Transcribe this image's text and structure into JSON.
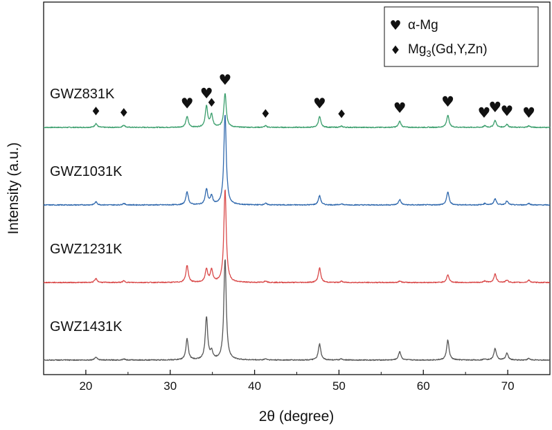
{
  "chart_data": {
    "type": "line",
    "xlabel": "2θ (degree)",
    "ylabel": "Intensity (a.u.)",
    "xlim": [
      15,
      75
    ],
    "x_ticks": [
      20,
      30,
      40,
      50,
      60,
      70
    ],
    "y_ticks_shown": false,
    "grid": false,
    "legend_position": "top-right",
    "legend": [
      {
        "symbol": "♥",
        "symbol_name": "heart",
        "label": "α-Mg",
        "label_base": "α-Mg",
        "label_sub": "",
        "label_tail": ""
      },
      {
        "symbol": "♦",
        "symbol_name": "diamond",
        "label": "Mg3(Gd,Y,Zn)",
        "label_base": "Mg",
        "label_sub": "3",
        "label_tail": "(Gd,Y,Zn)"
      }
    ],
    "series": [
      {
        "name": "GWZ831K",
        "color": "#3a9e6c",
        "baseline": 0,
        "peaks": [
          {
            "x": 21.2,
            "h": 0.05
          },
          {
            "x": 24.5,
            "h": 0.03
          },
          {
            "x": 32.0,
            "h": 0.14
          },
          {
            "x": 34.3,
            "h": 0.27
          },
          {
            "x": 34.9,
            "h": 0.16
          },
          {
            "x": 36.5,
            "h": 0.44
          },
          {
            "x": 41.3,
            "h": 0.02
          },
          {
            "x": 47.7,
            "h": 0.14
          },
          {
            "x": 50.3,
            "h": 0.015
          },
          {
            "x": 57.2,
            "h": 0.08
          },
          {
            "x": 62.9,
            "h": 0.16
          },
          {
            "x": 67.3,
            "h": 0.02
          },
          {
            "x": 68.5,
            "h": 0.09
          },
          {
            "x": 69.9,
            "h": 0.04
          },
          {
            "x": 72.5,
            "h": 0.02
          }
        ]
      },
      {
        "name": "GWZ1031K",
        "color": "#2f68ad",
        "baseline": -1,
        "peaks": [
          {
            "x": 21.2,
            "h": 0.04
          },
          {
            "x": 24.5,
            "h": 0.02
          },
          {
            "x": 32.0,
            "h": 0.17
          },
          {
            "x": 34.3,
            "h": 0.2
          },
          {
            "x": 34.9,
            "h": 0.11
          },
          {
            "x": 36.5,
            "h": 1.17
          },
          {
            "x": 41.3,
            "h": 0.02
          },
          {
            "x": 47.7,
            "h": 0.12
          },
          {
            "x": 50.3,
            "h": 0.015
          },
          {
            "x": 57.2,
            "h": 0.07
          },
          {
            "x": 62.9,
            "h": 0.17
          },
          {
            "x": 67.3,
            "h": 0.02
          },
          {
            "x": 68.5,
            "h": 0.08
          },
          {
            "x": 69.9,
            "h": 0.05
          },
          {
            "x": 72.5,
            "h": 0.02
          }
        ]
      },
      {
        "name": "GWZ1231K",
        "color": "#d94848",
        "baseline": -2,
        "peaks": [
          {
            "x": 21.2,
            "h": 0.05
          },
          {
            "x": 24.5,
            "h": 0.02
          },
          {
            "x": 32.0,
            "h": 0.22
          },
          {
            "x": 34.3,
            "h": 0.17
          },
          {
            "x": 34.9,
            "h": 0.16
          },
          {
            "x": 36.5,
            "h": 1.2
          },
          {
            "x": 41.3,
            "h": 0.02
          },
          {
            "x": 47.7,
            "h": 0.19
          },
          {
            "x": 50.3,
            "h": 0.015
          },
          {
            "x": 57.2,
            "h": 0.02
          },
          {
            "x": 62.9,
            "h": 0.1
          },
          {
            "x": 67.3,
            "h": 0.02
          },
          {
            "x": 68.5,
            "h": 0.11
          },
          {
            "x": 69.9,
            "h": 0.03
          },
          {
            "x": 72.5,
            "h": 0.03
          }
        ]
      },
      {
        "name": "GWZ1431K",
        "color": "#555555",
        "baseline": -3,
        "peaks": [
          {
            "x": 21.2,
            "h": 0.04
          },
          {
            "x": 24.5,
            "h": 0.015
          },
          {
            "x": 32.0,
            "h": 0.27
          },
          {
            "x": 34.3,
            "h": 0.55
          },
          {
            "x": 34.9,
            "h": 0.1
          },
          {
            "x": 36.5,
            "h": 1.3
          },
          {
            "x": 41.3,
            "h": 0.015
          },
          {
            "x": 47.7,
            "h": 0.21
          },
          {
            "x": 50.3,
            "h": 0.015
          },
          {
            "x": 57.2,
            "h": 0.11
          },
          {
            "x": 62.9,
            "h": 0.26
          },
          {
            "x": 67.3,
            "h": 0.015
          },
          {
            "x": 68.5,
            "h": 0.15
          },
          {
            "x": 69.9,
            "h": 0.09
          },
          {
            "x": 72.5,
            "h": 0.02
          }
        ]
      }
    ],
    "annotations": [
      {
        "symbol": "♦",
        "x": 21.2
      },
      {
        "symbol": "♦",
        "x": 24.5
      },
      {
        "symbol": "♥",
        "x": 32.0
      },
      {
        "symbol": "♥",
        "x": 34.3
      },
      {
        "symbol": "♦",
        "x": 34.9
      },
      {
        "symbol": "♥",
        "x": 36.5
      },
      {
        "symbol": "♦",
        "x": 41.3
      },
      {
        "symbol": "♥",
        "x": 47.7
      },
      {
        "symbol": "♦",
        "x": 50.3
      },
      {
        "symbol": "♥",
        "x": 57.2
      },
      {
        "symbol": "♥",
        "x": 62.9
      },
      {
        "symbol": "♥",
        "x": 67.2
      },
      {
        "symbol": "♥",
        "x": 68.5
      },
      {
        "symbol": "♥",
        "x": 69.9
      },
      {
        "symbol": "♥",
        "x": 72.5
      }
    ]
  }
}
